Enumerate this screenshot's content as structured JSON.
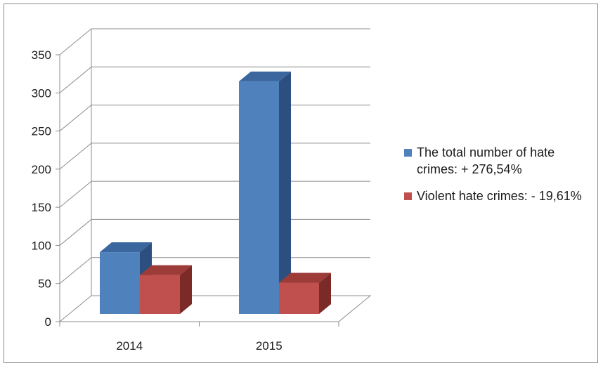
{
  "chart_data": {
    "type": "bar",
    "categories": [
      "2014",
      "2015"
    ],
    "series": [
      {
        "name": "The total number of hate crimes: + 276,54%",
        "values": [
          81,
          305
        ],
        "color": "#4f81bd",
        "side_color": "#2c4f80",
        "top_color": "#3b679e"
      },
      {
        "name": "Violent hate crimes: - 19,61%",
        "values": [
          51,
          41
        ],
        "color": "#c0504d",
        "side_color": "#7b2a28",
        "top_color": "#9c3b38"
      }
    ],
    "ylim": [
      0,
      350
    ],
    "yticks": [
      0,
      50,
      100,
      150,
      200,
      250,
      300,
      350
    ],
    "grid": true,
    "legend_position": "right",
    "style": "3d-clustered-column"
  }
}
